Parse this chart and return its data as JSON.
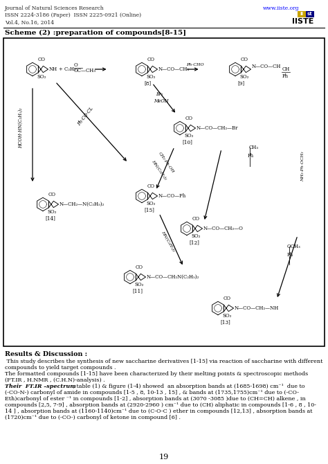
{
  "header_left_line1": "Journal of Natural Sciences Research",
  "header_left_line2": "ISSN 2224-3186 (Paper)  ISSN 2225-0921 (Online)",
  "header_left_line3": "Vol.4, No.16, 2014",
  "header_right_url": "www.iiste.org",
  "scheme_title": "Scheme (2) :preparation of compounds[8-15]",
  "page_number": "19",
  "results_title": "Results & Discussion :",
  "results_lines": [
    " This study describes the synthesis of new saccharine derivatives [1-15] via reaction of saccharine with different",
    "compounds to yield target compounds .",
    "The formatted compounds [1-15] have been characterized by their melting points & spectroscopic methods",
    "(FT.IR , H.NMR , (C.H.N)-analysis) .",
    "Their  FT.IR -spectrum , table (1) & figure (1-4) showed  an absorption bands at (1685-1698) cm⁻¹  due to",
    "(-CO-N-) carbonyl of amide in compounds [1-5 , 8, 10-13 , 15] , & bands at (1735,1755)cm⁻¹ due to (-CO-",
    "Eth)carbonyl of ester ⁻¹ in compounds [1-2] , absorption bands at (3070 -3085 )due to (CH=CH) alkene , in",
    "compounds [2,5, 7-9] , absorption bands at (2920-2960 ) cm⁻¹ due to (CH) aliphatic in compounds [1-6 , 8 , 10-",
    "14 ] , absorption bands at (1160-1140)cm⁻¹ due to (C-O-C ) ether in compounds [12,13] , absorption bands at",
    "(1720)cm⁻¹ due to (-CO-) carbonyl of ketone in compound [6] ."
  ],
  "bg_color": "#ffffff",
  "text_color": "#000000",
  "box_color": "#000000",
  "url_color": "#0000ff",
  "logo_gold": "#c8a400",
  "logo_blue": "#000080"
}
